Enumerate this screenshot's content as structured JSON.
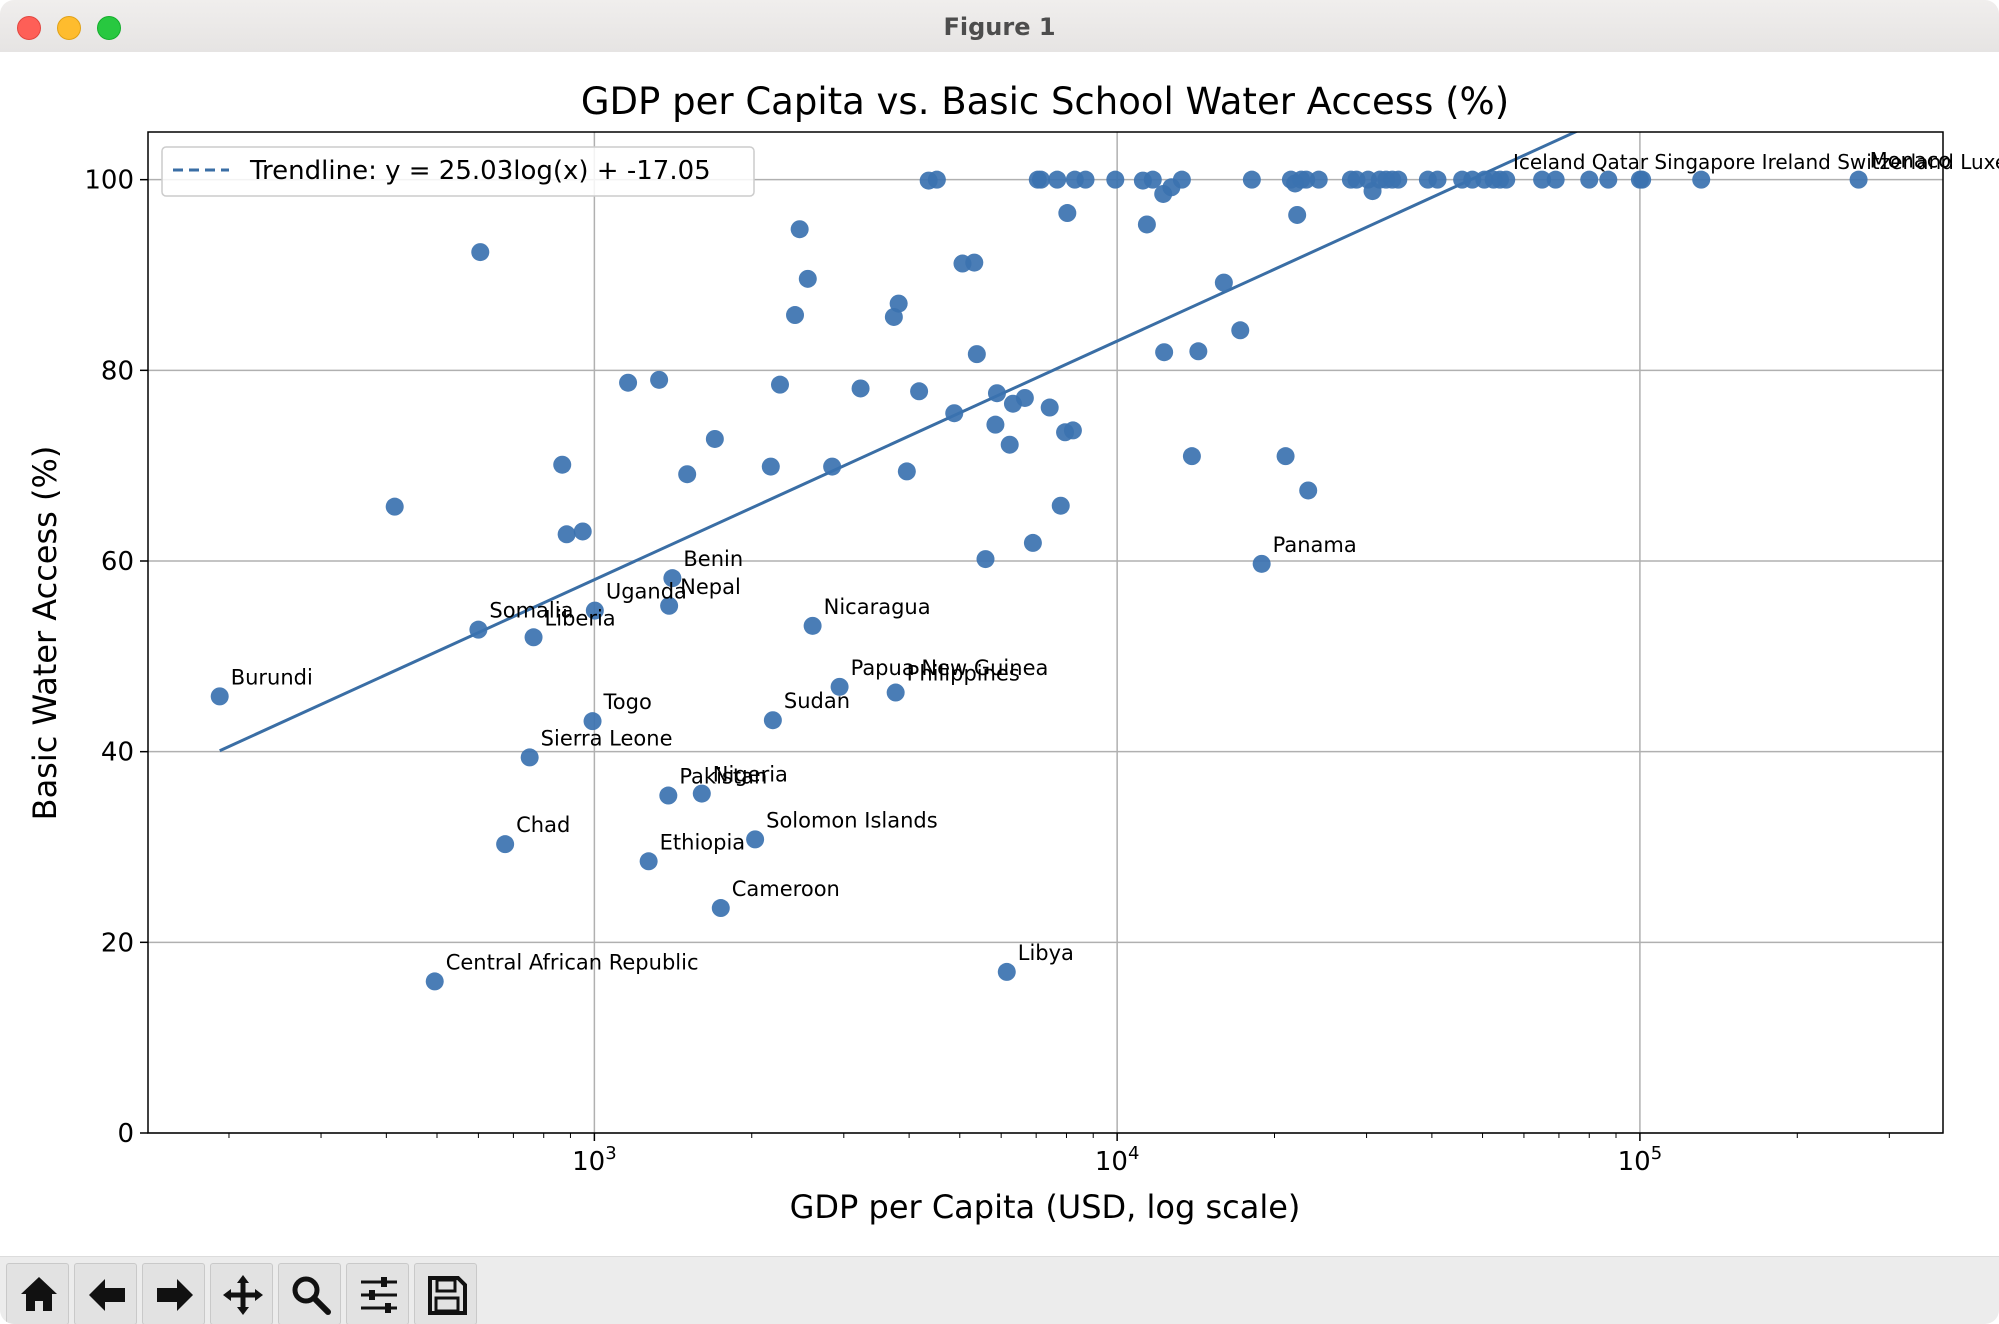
{
  "window": {
    "title": "Figure 1"
  },
  "toolbar": {
    "buttons": [
      {
        "name": "home-button",
        "icon": "home-icon"
      },
      {
        "name": "back-button",
        "icon": "arrow-left-icon"
      },
      {
        "name": "forward-button",
        "icon": "arrow-right-icon"
      },
      {
        "name": "pan-button",
        "icon": "move-icon"
      },
      {
        "name": "zoom-button",
        "icon": "magnifier-icon"
      },
      {
        "name": "configure-subplots-button",
        "icon": "sliders-icon"
      },
      {
        "name": "save-button",
        "icon": "floppy-disk-icon"
      }
    ]
  },
  "chart_data": {
    "type": "scatter",
    "title": "GDP per Capita vs. Basic School Water Access (%)",
    "xlabel": "GDP per Capita (USD, log scale)",
    "ylabel": "Basic Water Access (%)",
    "xscale": "log",
    "xlim": [
      140,
      380000
    ],
    "ylim": [
      0,
      105
    ],
    "xticks": [
      1000,
      10000,
      100000
    ],
    "xtick_labels": [
      "10^3",
      "10^4",
      "10^5"
    ],
    "yticks": [
      0,
      20,
      40,
      60,
      80,
      100
    ],
    "ytick_labels": [
      "0",
      "20",
      "40",
      "60",
      "80",
      "100"
    ],
    "grid": true,
    "legend_position": "top-left",
    "colors": {
      "points": "#3b72b0",
      "trend": "#3a6ea5",
      "axis": "#000000",
      "grid": "#b0b0b0"
    },
    "trendline": {
      "label": "Trendline: y = 25.03log(x) + -17.05",
      "slope": 25.03,
      "intercept": -17.05,
      "x_range": [
        192,
        262000
      ]
    },
    "labeled_points": [
      {
        "label": "Burundi",
        "x": 192,
        "y": 45.8
      },
      {
        "label": "Central African Republic",
        "x": 495,
        "y": 15.9
      },
      {
        "label": "Somalia",
        "x": 600,
        "y": 52.8
      },
      {
        "label": "Chad",
        "x": 675,
        "y": 30.3
      },
      {
        "label": "Sierra Leone",
        "x": 752,
        "y": 39.4
      },
      {
        "label": "Liberia",
        "x": 765,
        "y": 52.0
      },
      {
        "label": "Togo",
        "x": 992,
        "y": 43.2
      },
      {
        "label": "Uganda",
        "x": 1002,
        "y": 54.8
      },
      {
        "label": "Ethiopia",
        "x": 1270,
        "y": 28.5
      },
      {
        "label": "Pakistan",
        "x": 1385,
        "y": 35.4
      },
      {
        "label": "Nepal",
        "x": 1390,
        "y": 55.3
      },
      {
        "label": "Benin",
        "x": 1410,
        "y": 58.2
      },
      {
        "label": "Nigeria",
        "x": 1605,
        "y": 35.6
      },
      {
        "label": "Cameroon",
        "x": 1745,
        "y": 23.6
      },
      {
        "label": "Solomon Islands",
        "x": 2030,
        "y": 30.8
      },
      {
        "label": "Sudan",
        "x": 2195,
        "y": 43.3
      },
      {
        "label": "Nicaragua",
        "x": 2615,
        "y": 53.2
      },
      {
        "label": "Papua New Guinea",
        "x": 2945,
        "y": 46.8
      },
      {
        "label": "Philippines",
        "x": 3770,
        "y": 46.2
      },
      {
        "label": "Libya",
        "x": 6150,
        "y": 16.9
      },
      {
        "label": "Panama",
        "x": 18900,
        "y": 59.7
      },
      {
        "label": "Monaco",
        "x": 262000,
        "y": 100
      }
    ],
    "overlapping_labels_text": "Iceland Qatar Singapore Ireland Switzerland Luxembourg",
    "other_points": [
      {
        "x": 415,
        "y": 65.7
      },
      {
        "x": 605,
        "y": 92.4
      },
      {
        "x": 868,
        "y": 70.1
      },
      {
        "x": 885,
        "y": 62.8
      },
      {
        "x": 950,
        "y": 63.1
      },
      {
        "x": 1160,
        "y": 78.7
      },
      {
        "x": 1330,
        "y": 79.0
      },
      {
        "x": 1505,
        "y": 69.1
      },
      {
        "x": 1700,
        "y": 72.8
      },
      {
        "x": 2175,
        "y": 69.9
      },
      {
        "x": 2265,
        "y": 78.5
      },
      {
        "x": 2420,
        "y": 85.8
      },
      {
        "x": 2470,
        "y": 94.8
      },
      {
        "x": 2560,
        "y": 89.6
      },
      {
        "x": 2850,
        "y": 69.9
      },
      {
        "x": 3230,
        "y": 78.1
      },
      {
        "x": 3740,
        "y": 85.6
      },
      {
        "x": 3820,
        "y": 87.0
      },
      {
        "x": 3960,
        "y": 69.4
      },
      {
        "x": 4180,
        "y": 77.8
      },
      {
        "x": 4360,
        "y": 99.9
      },
      {
        "x": 4520,
        "y": 100
      },
      {
        "x": 4880,
        "y": 75.5
      },
      {
        "x": 5060,
        "y": 91.2
      },
      {
        "x": 5330,
        "y": 91.3
      },
      {
        "x": 5390,
        "y": 81.7
      },
      {
        "x": 5600,
        "y": 60.2
      },
      {
        "x": 5850,
        "y": 74.3
      },
      {
        "x": 5890,
        "y": 77.6
      },
      {
        "x": 6230,
        "y": 72.2
      },
      {
        "x": 6320,
        "y": 76.5
      },
      {
        "x": 6660,
        "y": 77.1
      },
      {
        "x": 6900,
        "y": 61.9
      },
      {
        "x": 7050,
        "y": 100
      },
      {
        "x": 7150,
        "y": 100
      },
      {
        "x": 7430,
        "y": 76.1
      },
      {
        "x": 7680,
        "y": 100
      },
      {
        "x": 7800,
        "y": 65.8
      },
      {
        "x": 7950,
        "y": 73.5
      },
      {
        "x": 8030,
        "y": 96.5
      },
      {
        "x": 8230,
        "y": 73.7
      },
      {
        "x": 8300,
        "y": 100
      },
      {
        "x": 8700,
        "y": 100
      },
      {
        "x": 9920,
        "y": 100
      },
      {
        "x": 11200,
        "y": 99.9
      },
      {
        "x": 11400,
        "y": 95.3
      },
      {
        "x": 11700,
        "y": 100
      },
      {
        "x": 12250,
        "y": 98.5
      },
      {
        "x": 12300,
        "y": 81.9
      },
      {
        "x": 12700,
        "y": 99.2
      },
      {
        "x": 13300,
        "y": 100
      },
      {
        "x": 13900,
        "y": 71.0
      },
      {
        "x": 14300,
        "y": 82.0
      },
      {
        "x": 16000,
        "y": 89.2
      },
      {
        "x": 17200,
        "y": 84.2
      },
      {
        "x": 18100,
        "y": 100
      },
      {
        "x": 21000,
        "y": 71.0
      },
      {
        "x": 21500,
        "y": 100
      },
      {
        "x": 21900,
        "y": 99.6
      },
      {
        "x": 22100,
        "y": 96.3
      },
      {
        "x": 22500,
        "y": 100
      },
      {
        "x": 23000,
        "y": 100
      },
      {
        "x": 23200,
        "y": 67.4
      },
      {
        "x": 24300,
        "y": 100
      },
      {
        "x": 28000,
        "y": 100
      },
      {
        "x": 28700,
        "y": 100
      },
      {
        "x": 30200,
        "y": 100
      },
      {
        "x": 30800,
        "y": 98.8
      },
      {
        "x": 31800,
        "y": 100
      },
      {
        "x": 32700,
        "y": 100
      },
      {
        "x": 33600,
        "y": 100
      },
      {
        "x": 34500,
        "y": 100
      },
      {
        "x": 39300,
        "y": 100
      },
      {
        "x": 41000,
        "y": 100
      },
      {
        "x": 45700,
        "y": 100
      },
      {
        "x": 47800,
        "y": 100
      },
      {
        "x": 50400,
        "y": 100
      },
      {
        "x": 52500,
        "y": 100
      },
      {
        "x": 54000,
        "y": 100
      },
      {
        "x": 55500,
        "y": 100
      },
      {
        "x": 65000,
        "y": 100
      },
      {
        "x": 69000,
        "y": 100
      },
      {
        "x": 80000,
        "y": 100
      },
      {
        "x": 87000,
        "y": 100
      },
      {
        "x": 100000,
        "y": 100
      },
      {
        "x": 101000,
        "y": 100
      },
      {
        "x": 131000,
        "y": 100
      }
    ]
  }
}
